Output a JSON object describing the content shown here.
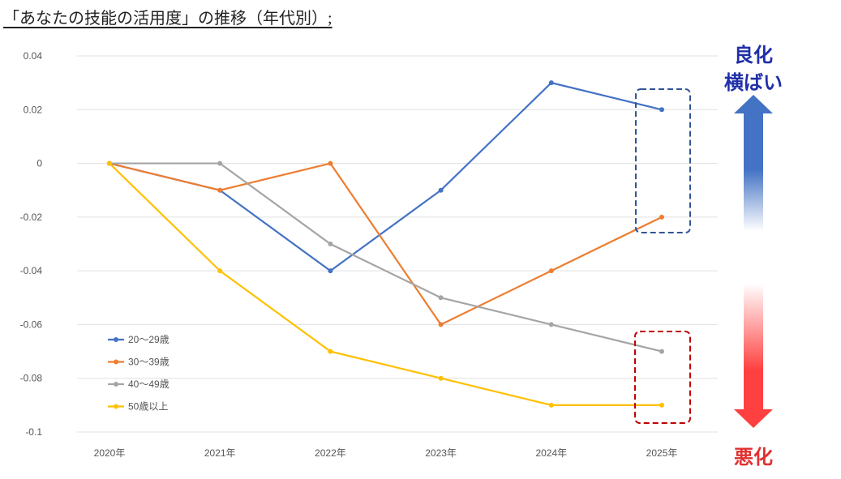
{
  "chart_data": {
    "type": "line",
    "title": "「あなたの技能の活用度」の推移（年代別）;",
    "categories": [
      "2020年",
      "2021年",
      "2022年",
      "2023年",
      "2024年",
      "2025年"
    ],
    "ylim": [
      -0.1,
      0.04
    ],
    "yticks": [
      0.04,
      0.02,
      0,
      -0.02,
      -0.04,
      -0.06,
      -0.08,
      -0.1
    ],
    "ytick_labels": [
      "0.04",
      "0.02",
      "0",
      "-0.02",
      "-0.04",
      "-0.06",
      "-0.08",
      "-0.1"
    ],
    "grid": true,
    "legend_placement": "bottom-left",
    "series": [
      {
        "name": "20〜29歳",
        "color": "#4472C4",
        "values": [
          0,
          -0.01,
          -0.04,
          -0.01,
          0.03,
          0.02
        ]
      },
      {
        "name": "30〜39歳",
        "color": "#ED7D31",
        "values": [
          0,
          -0.01,
          0,
          -0.06,
          -0.04,
          -0.02
        ]
      },
      {
        "name": "40〜49歳",
        "color": "#A5A5A5",
        "values": [
          0,
          0,
          -0.03,
          -0.05,
          -0.06,
          -0.07
        ]
      },
      {
        "name": "50歳以上",
        "color": "#FFC000",
        "values": [
          0,
          -0.04,
          -0.07,
          -0.08,
          -0.09,
          -0.09
        ]
      }
    ],
    "annotations": {
      "improve_label_1": "良化",
      "improve_label_2": "横ばい",
      "worsen_label": "悪化",
      "improve_color": "#1F2FA8",
      "worsen_color": "#E03030"
    }
  }
}
